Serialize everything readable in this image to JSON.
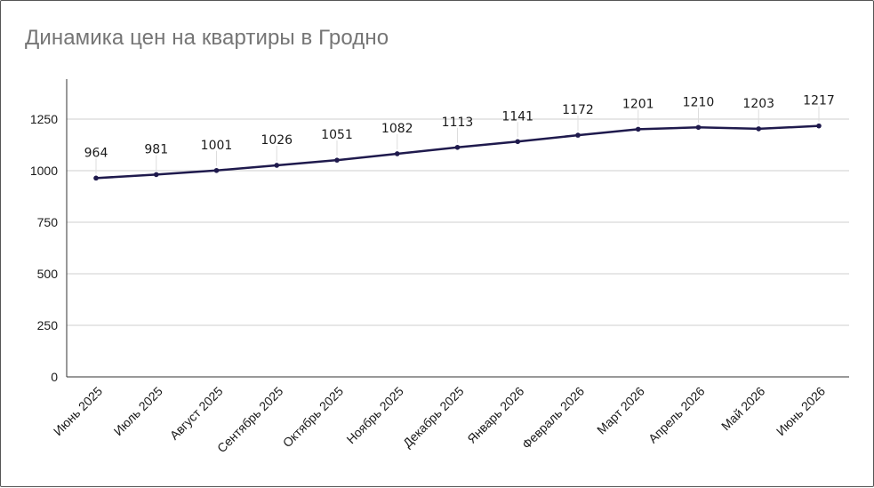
{
  "chart_data": {
    "type": "line",
    "title": "Динамика цен на квартиры в Гродно",
    "xlabel": "",
    "ylabel": "",
    "categories": [
      "Июнь 2025",
      "Июль 2025",
      "Август 2025",
      "Сентябрь 2025",
      "Октябрь 2025",
      "Ноябрь 2025",
      "Декабрь 2025",
      "Январь 2026",
      "Февраль 2026",
      "Март 2026",
      "Апрель 2026",
      "Май 2026",
      "Июнь 2026"
    ],
    "series": [
      {
        "values": [
          964,
          981,
          1001,
          1026,
          1051,
          1082,
          1113,
          1141,
          1172,
          1201,
          1210,
          1203,
          1217
        ]
      }
    ],
    "ylim": [
      0,
      1250
    ],
    "yticks": [
      0,
      250,
      500,
      750,
      1000,
      1250
    ],
    "grid": true,
    "legend": "none",
    "line_color": "#1f1a4d",
    "data_labels": true
  }
}
